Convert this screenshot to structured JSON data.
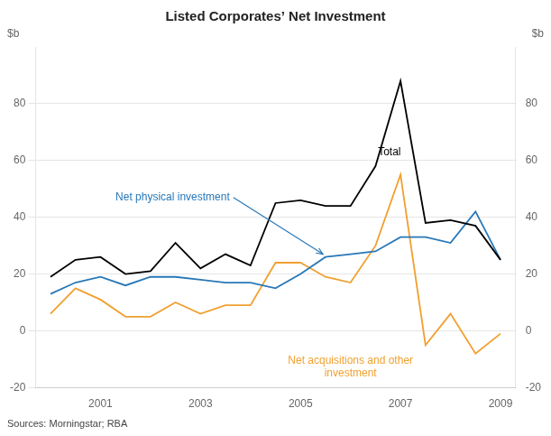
{
  "chart_data": {
    "type": "line",
    "title": "Listed Corporates’ Net Investment",
    "ylabel": "$b",
    "y2label": "$b",
    "source": "Sources: Morningstar; RBA",
    "x": [
      2000.0,
      2000.5,
      2001.0,
      2001.5,
      2002.0,
      2002.5,
      2003.0,
      2003.5,
      2004.0,
      2004.5,
      2005.0,
      2005.5,
      2006.0,
      2006.5,
      2007.0,
      2007.5,
      2008.0,
      2008.5,
      2009.0
    ],
    "series": [
      {
        "color": "#000000",
        "values": [
          19,
          25,
          26,
          20,
          21,
          31,
          22,
          27,
          23,
          45,
          46,
          44,
          44,
          58,
          88,
          38,
          39,
          37,
          25
        ]
      },
      {
        "color": "#2878b8",
        "values": [
          13,
          17,
          19,
          16,
          19,
          19,
          18,
          17,
          17,
          15,
          20,
          26,
          27,
          28,
          33,
          33,
          31,
          42,
          25
        ]
      },
      {
        "color": "#f0a030",
        "values": [
          6,
          15,
          11,
          5,
          5,
          10,
          6,
          9,
          9,
          24,
          24,
          19,
          17,
          30,
          55,
          -5,
          6,
          -8,
          -1
        ]
      }
    ],
    "xlim": [
      1999.7,
      2009.3
    ],
    "xticks": [
      2001,
      2003,
      2005,
      2007,
      2009
    ],
    "ylim": [
      -20,
      100
    ],
    "yticks": [
      -20,
      0,
      20,
      40,
      60,
      80
    ],
    "y2lim": [
      -20,
      100
    ],
    "y2ticks": [
      -20,
      0,
      20,
      40,
      60,
      80
    ],
    "grid": true,
    "annotations": [
      {
        "text": "Total",
        "x": 2006.55,
        "y": 63,
        "color": "#000000"
      },
      {
        "text": "Net physical investment",
        "x": 2001.3,
        "y": 47,
        "color": "#2878b8",
        "arrow_to": [
          2005.45,
          27
        ]
      },
      {
        "text": "Net acquisitions and other\ninvestment",
        "x": 2006.0,
        "y": -8,
        "color": "#f0a030"
      }
    ]
  }
}
